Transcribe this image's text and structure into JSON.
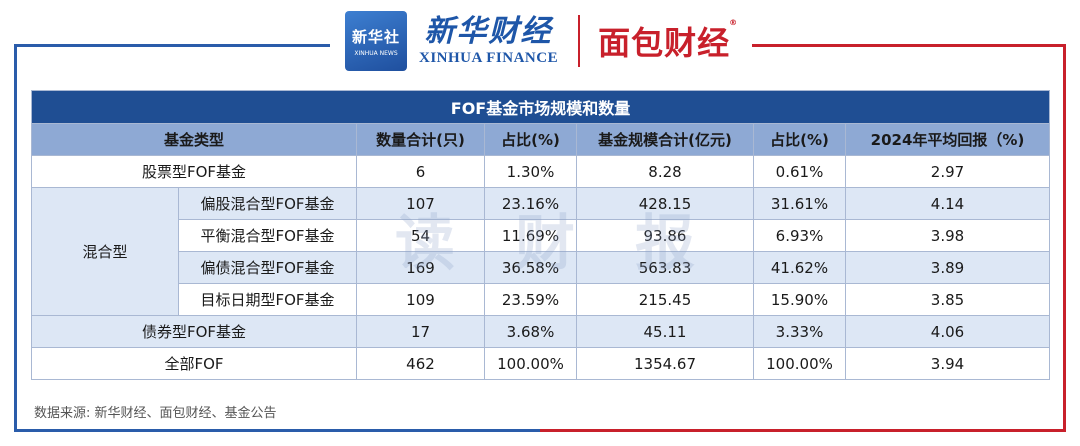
{
  "brand": {
    "xinhua_badge_cn": "新华社",
    "xinhua_badge_en": "XINHUA NEWS",
    "xinhua_cn": "新华财经",
    "xinhua_en": "XINHUA FINANCE",
    "mianbao": "面包财经",
    "registered": "®"
  },
  "table": {
    "title": "FOF基金市场规模和数量",
    "headers": [
      "基金类型",
      "数量合计(只)",
      "占比(%)",
      "基金规模合计(亿元)",
      "占比(%)",
      "2024年平均回报（%)"
    ],
    "mixed_group": "混合型",
    "rows": [
      {
        "type": "股票型FOF基金",
        "count": "6",
        "count_pct": "1.30%",
        "size": "8.28",
        "size_pct": "0.61%",
        "ret": "2.97"
      },
      {
        "type": "偏股混合型FOF基金",
        "count": "107",
        "count_pct": "23.16%",
        "size": "428.15",
        "size_pct": "31.61%",
        "ret": "4.14"
      },
      {
        "type": "平衡混合型FOF基金",
        "count": "54",
        "count_pct": "11.69%",
        "size": "93.86",
        "size_pct": "6.93%",
        "ret": "3.98"
      },
      {
        "type": "偏债混合型FOF基金",
        "count": "169",
        "count_pct": "36.58%",
        "size": "563.83",
        "size_pct": "41.62%",
        "ret": "3.89"
      },
      {
        "type": "目标日期型FOF基金",
        "count": "109",
        "count_pct": "23.59%",
        "size": "215.45",
        "size_pct": "15.90%",
        "ret": "3.85"
      },
      {
        "type": "债券型FOF基金",
        "count": "17",
        "count_pct": "3.68%",
        "size": "45.11",
        "size_pct": "3.33%",
        "ret": "4.06"
      },
      {
        "type": "全部FOF",
        "count": "462",
        "count_pct": "100.00%",
        "size": "1354.67",
        "size_pct": "100.00%",
        "ret": "3.94"
      }
    ]
  },
  "watermark": "读财报",
  "source": "数据来源: 新华财经、面包财经、基金公告"
}
